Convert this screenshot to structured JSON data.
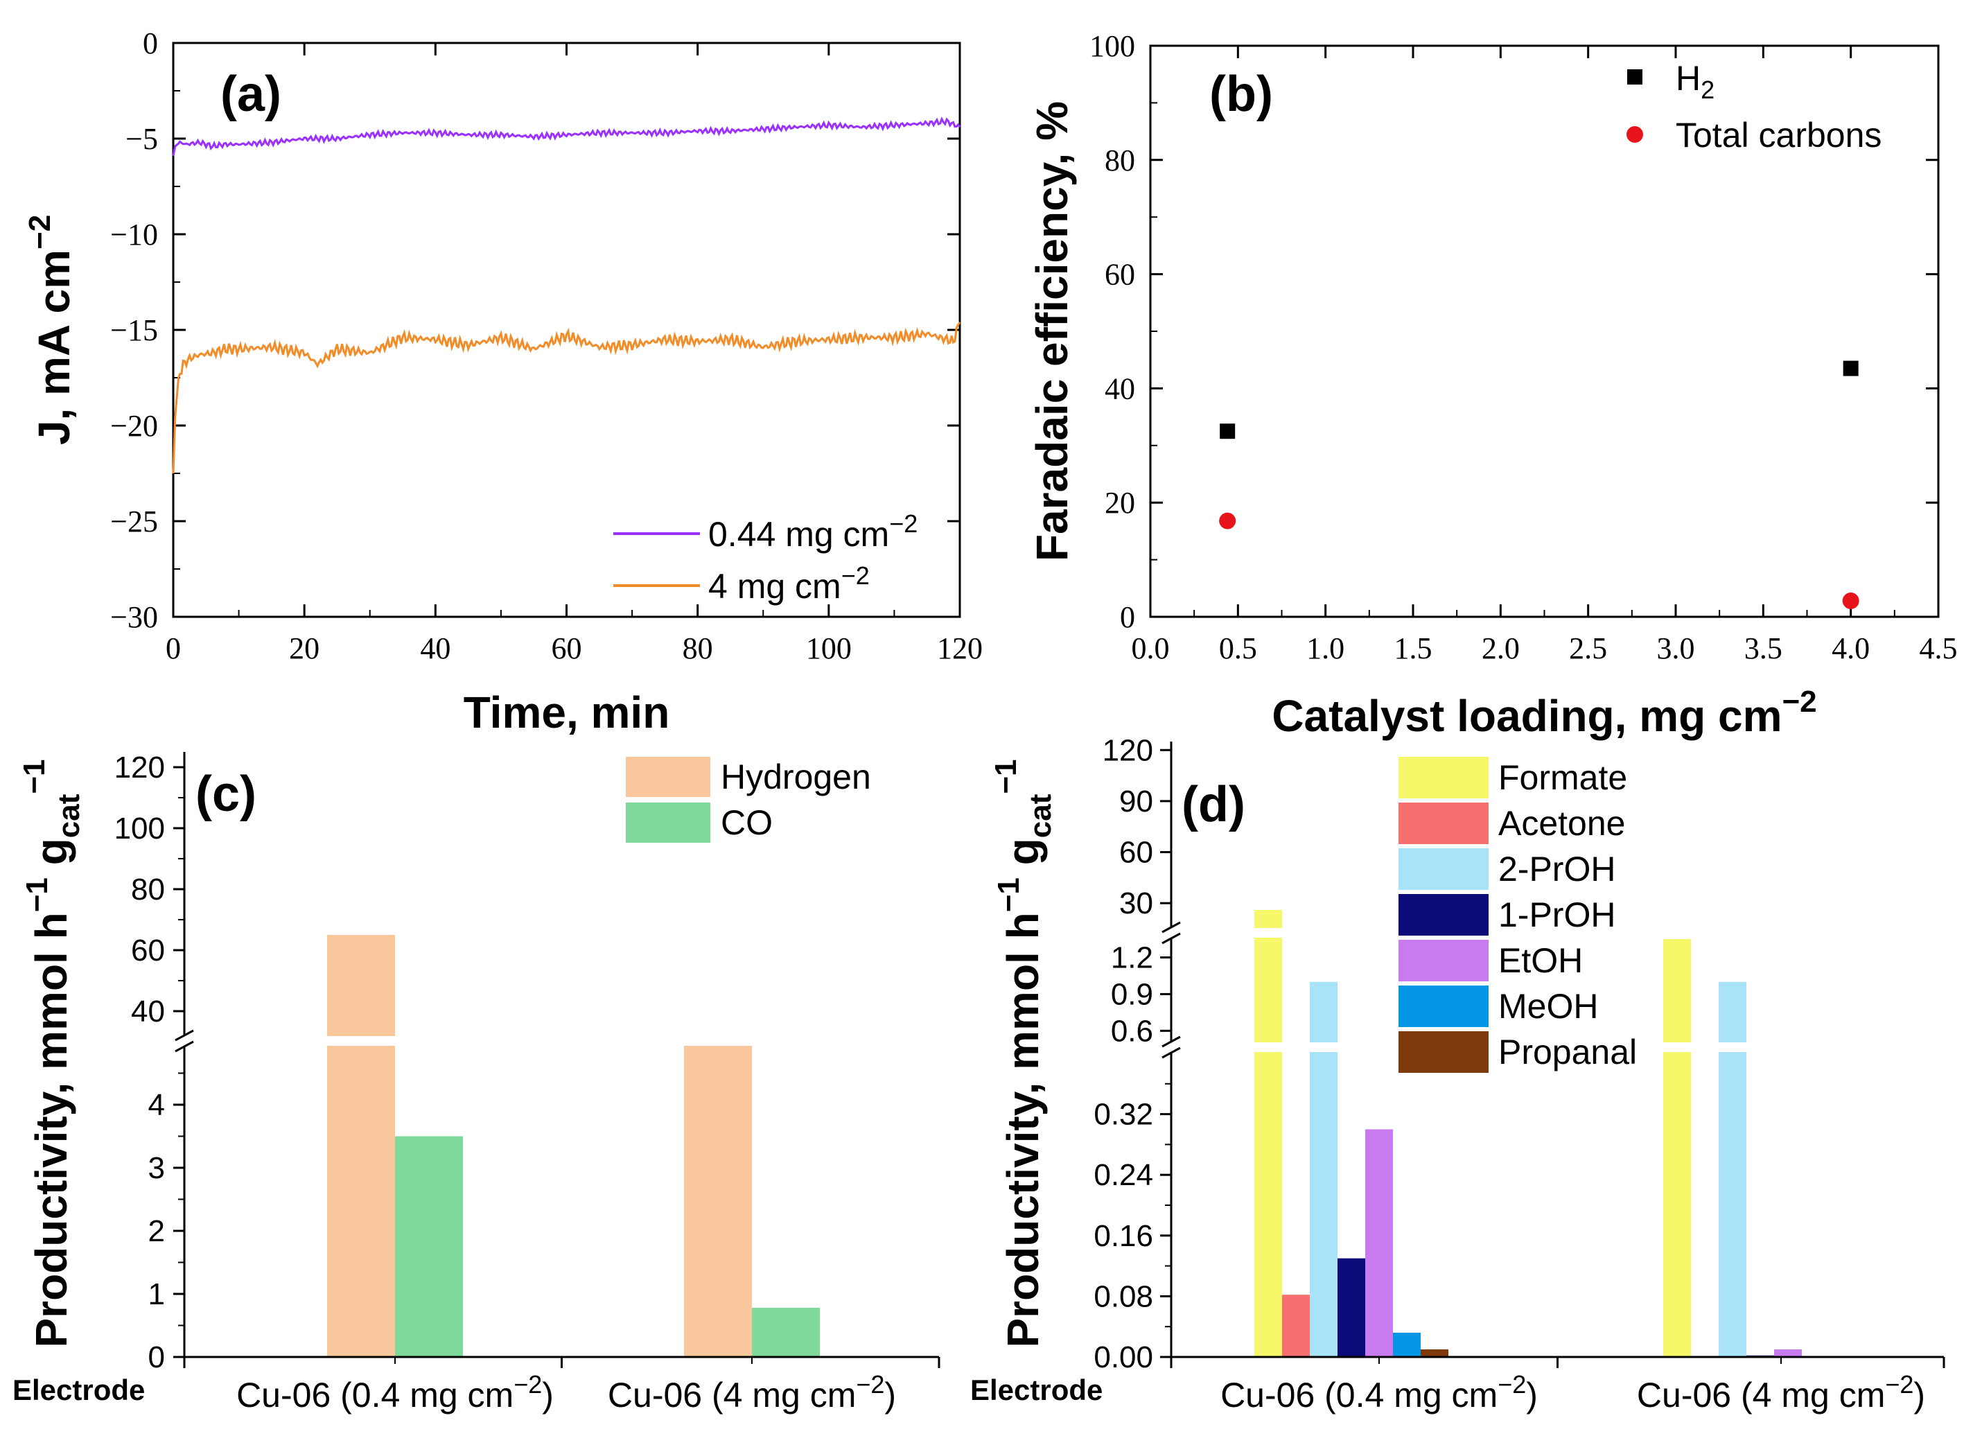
{
  "colors": {
    "purple": "#9B30FF",
    "orange": "#F28C28",
    "black": "#000000",
    "red": "#E8141B",
    "hydrogen": "#F9C79B",
    "co": "#7FD99B",
    "formate": "#F7F76A",
    "acetone": "#F76F6F",
    "twoPrOH": "#A9E3F7",
    "onePrOH": "#0A0A78",
    "etoh": "#C77BEF",
    "meoh": "#0596E6",
    "propanal": "#7E3A0C"
  },
  "chart_data": [
    {
      "id": "a",
      "type": "line",
      "panel_label": "(a)",
      "xlabel": "Time, min",
      "ylabel": "J, mA cm",
      "ylabel_sup": "−2",
      "xlim": [
        0,
        120
      ],
      "ylim": [
        -30,
        0
      ],
      "xticks": [
        0,
        20,
        40,
        60,
        80,
        100,
        120
      ],
      "yticks": [
        0,
        -5,
        -10,
        -15,
        -20,
        -25,
        -30
      ],
      "ytick_labels": [
        "0",
        "−5",
        "−10",
        "−15",
        "−20",
        "−25",
        "−30"
      ],
      "legend": [
        {
          "label": "0.44 mg cm",
          "sup": "−2",
          "color": "#9B30FF"
        },
        {
          "label": "4 mg cm",
          "sup": "−2",
          "color": "#F28C28"
        }
      ],
      "series": [
        {
          "name": "0.44 mg cm−2",
          "color": "#9B30FF",
          "x": [
            0,
            0.3,
            1,
            2,
            4,
            6,
            8,
            10,
            15,
            20,
            25,
            30,
            35,
            40,
            45,
            50,
            55,
            60,
            65,
            70,
            75,
            80,
            85,
            90,
            95,
            100,
            105,
            110,
            115,
            118,
            120
          ],
          "y": [
            -5.9,
            -5.4,
            -5.2,
            -5.3,
            -5.2,
            -5.4,
            -5.3,
            -5.3,
            -5.2,
            -5.0,
            -5.0,
            -4.8,
            -4.7,
            -4.7,
            -4.8,
            -4.8,
            -4.9,
            -4.8,
            -4.7,
            -4.7,
            -4.7,
            -4.6,
            -4.6,
            -4.5,
            -4.4,
            -4.3,
            -4.4,
            -4.3,
            -4.2,
            -4.1,
            -4.4
          ]
        },
        {
          "name": "4 mg cm−2",
          "color": "#F28C28",
          "x": [
            0,
            0.3,
            0.8,
            1.5,
            2.5,
            4,
            6,
            8,
            10,
            15,
            20,
            22,
            25,
            30,
            35,
            40,
            45,
            50,
            55,
            60,
            65,
            70,
            75,
            80,
            85,
            90,
            95,
            100,
            105,
            110,
            115,
            119,
            120
          ],
          "y": [
            -22.5,
            -19.5,
            -17.5,
            -16.8,
            -16.5,
            -16.3,
            -16.2,
            -16.0,
            -16.0,
            -15.9,
            -16.2,
            -16.8,
            -16.0,
            -16.2,
            -15.4,
            -15.5,
            -15.8,
            -15.4,
            -16.0,
            -15.3,
            -15.9,
            -15.8,
            -15.5,
            -15.6,
            -15.5,
            -15.9,
            -15.6,
            -15.5,
            -15.4,
            -15.4,
            -15.2,
            -15.6,
            -14.6
          ]
        }
      ]
    },
    {
      "id": "b",
      "type": "scatter",
      "panel_label": "(b)",
      "xlabel": "Catalyst loading, mg cm",
      "xlabel_sup": "−2",
      "ylabel": "Faradaic efficiency, %",
      "xlim": [
        0,
        4.5
      ],
      "ylim": [
        0,
        100
      ],
      "xticks": [
        0.0,
        0.5,
        1.0,
        1.5,
        2.0,
        2.5,
        3.0,
        3.5,
        4.0,
        4.5
      ],
      "xtick_labels": [
        "0.0",
        "0.5",
        "1.0",
        "1.5",
        "2.0",
        "2.5",
        "3.0",
        "3.5",
        "4.0",
        "4.5"
      ],
      "yticks": [
        0,
        20,
        40,
        60,
        80,
        100
      ],
      "legend": [
        {
          "label": "H",
          "sub": "2",
          "marker": "square",
          "color": "#000000"
        },
        {
          "label": "Total carbons",
          "marker": "circle",
          "color": "#E8141B"
        }
      ],
      "series": [
        {
          "name": "H2",
          "marker": "square",
          "color": "#000000",
          "x": [
            0.44,
            4.0
          ],
          "y": [
            32.5,
            43.5
          ]
        },
        {
          "name": "Total carbons",
          "marker": "circle",
          "color": "#E8141B",
          "x": [
            0.44,
            4.0
          ],
          "y": [
            16.8,
            2.8
          ]
        }
      ]
    },
    {
      "id": "c",
      "type": "bar",
      "panel_label": "(c)",
      "ylabel": "Productivity, mmol h",
      "ylabel_sup1": "−1",
      "ylabel_mid": " g",
      "ylabel_sub": "cat",
      "ylabel_sup2": "−1",
      "axis_broken": true,
      "lower_range": [
        0,
        5
      ],
      "upper_range": [
        30,
        125
      ],
      "lower_ticks": [
        0,
        1,
        2,
        3,
        4
      ],
      "upper_ticks": [
        40,
        60,
        80,
        100,
        120
      ],
      "categories": [
        "Cu-06 (0.4 mg cm",
        "Cu-06 (4 mg cm"
      ],
      "category_sup": "−2",
      "category_suffix": ")",
      "electrode_label": "Electrode",
      "series": [
        {
          "name": "Hydrogen",
          "color": "#F9C79B",
          "values": [
            65,
            31
          ]
        },
        {
          "name": "CO",
          "color": "#7FD99B",
          "values": [
            3.5,
            0.78
          ]
        }
      ]
    },
    {
      "id": "d",
      "type": "bar",
      "panel_label": "(d)",
      "ylabel": "Productivity, mmol h",
      "ylabel_sup1": "−1",
      "ylabel_mid": " g",
      "ylabel_sub": "cat",
      "ylabel_sup2": "−1",
      "axis_broken": true,
      "segments": [
        {
          "range": [
            0,
            0.4
          ],
          "ticks": [
            "0.00",
            "0.08",
            "0.16",
            "0.24",
            "0.32"
          ]
        },
        {
          "range": [
            0.5,
            1.35
          ],
          "ticks": [
            "0.6",
            "0.9",
            "1.2"
          ]
        },
        {
          "range": [
            15,
            125
          ],
          "ticks": [
            "30",
            "60",
            "90",
            "120"
          ]
        }
      ],
      "categories": [
        "Cu-06 (0.4 mg cm",
        "Cu-06 (4 mg cm"
      ],
      "category_sup": "−2",
      "category_suffix": ")",
      "electrode_label": "Electrode",
      "series": [
        {
          "name": "Formate",
          "color": "#F7F76A",
          "values": [
            26,
            1.35
          ]
        },
        {
          "name": "Acetone",
          "color": "#F76F6F",
          "values": [
            0.082,
            0
          ]
        },
        {
          "name": "2-PrOH",
          "color": "#A9E3F7",
          "values": [
            1.0,
            1.0
          ]
        },
        {
          "name": "1-PrOH",
          "color": "#0A0A78",
          "values": [
            0.13,
            0.002
          ]
        },
        {
          "name": "EtOH",
          "color": "#C77BEF",
          "values": [
            0.3,
            0.01
          ]
        },
        {
          "name": "MeOH",
          "color": "#0596E6",
          "values": [
            0.032,
            0
          ]
        },
        {
          "name": "Propanal",
          "color": "#7E3A0C",
          "values": [
            0.01,
            0
          ]
        }
      ]
    }
  ]
}
